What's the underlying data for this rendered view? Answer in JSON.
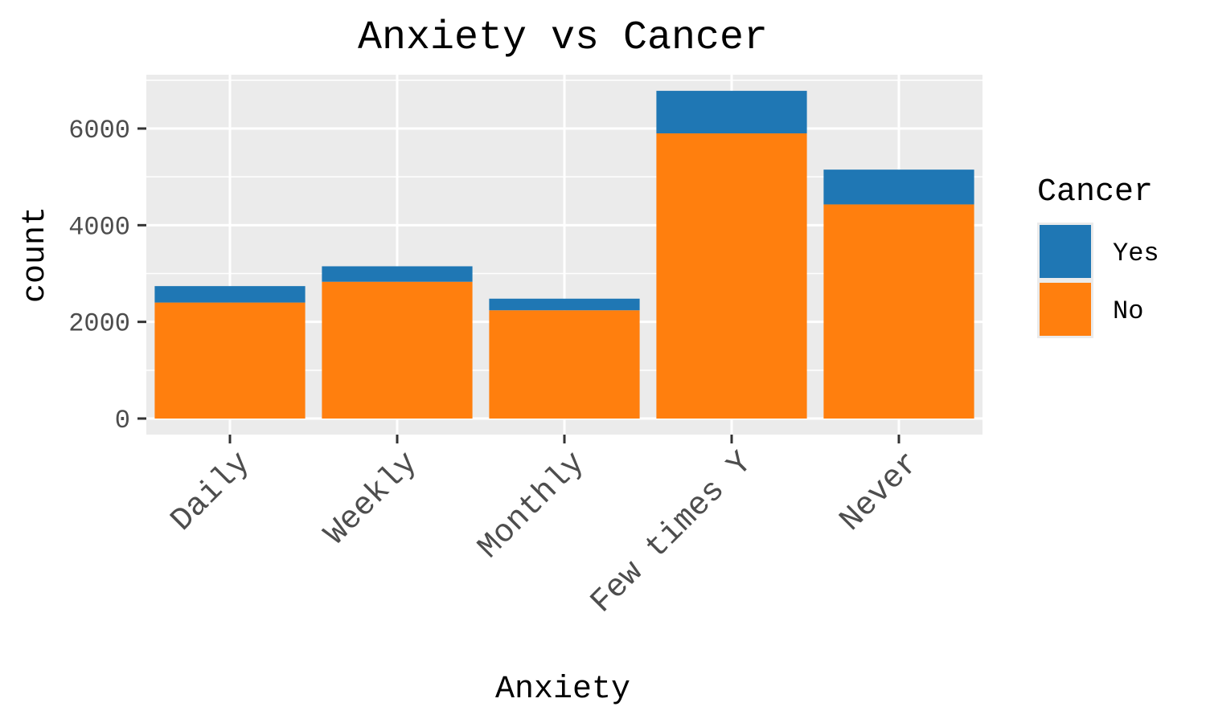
{
  "chart_data": {
    "type": "bar",
    "stacked": true,
    "title": "Anxiety vs Cancer",
    "xlabel": "Anxiety",
    "ylabel": "count",
    "categories": [
      "Daily",
      "Weekly",
      "Monthly",
      "Few times Y",
      "Never"
    ],
    "series": [
      {
        "name": "No",
        "values": [
          2400,
          2830,
          2240,
          5900,
          4430
        ],
        "color": "#ff7f0e"
      },
      {
        "name": "Yes",
        "values": [
          340,
          320,
          240,
          880,
          720
        ],
        "color": "#1f77b4"
      }
    ],
    "ylim": [
      -300,
      7100
    ],
    "yticks": [
      0,
      2000,
      4000,
      6000
    ],
    "ytick_labels": [
      "0",
      "2000",
      "4000",
      "6000"
    ],
    "grid": true,
    "legend": {
      "title": "Cancer",
      "position": "right",
      "entries": [
        {
          "label": "Yes",
          "color": "#1f77b4"
        },
        {
          "label": "No",
          "color": "#ff7f0e"
        }
      ]
    },
    "panel_background": "#ebebeb",
    "grid_color": "#ffffff"
  }
}
